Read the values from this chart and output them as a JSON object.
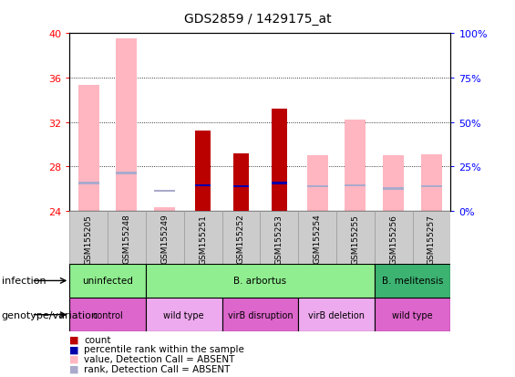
{
  "title": "GDS2859 / 1429175_at",
  "samples": [
    "GSM155205",
    "GSM155248",
    "GSM155249",
    "GSM155251",
    "GSM155252",
    "GSM155253",
    "GSM155254",
    "GSM155255",
    "GSM155256",
    "GSM155257"
  ],
  "ylim_left": [
    24,
    40
  ],
  "ylim_right": [
    0,
    100
  ],
  "yticks_left": [
    24,
    28,
    32,
    36,
    40
  ],
  "yticks_right": [
    0,
    25,
    50,
    75,
    100
  ],
  "pink_bar_top": [
    35.3,
    39.5,
    24.3,
    null,
    null,
    null,
    29.0,
    32.2,
    29.0,
    29.1
  ],
  "blue_rank_pos": [
    26.5,
    27.4,
    25.8,
    null,
    null,
    null,
    26.2,
    26.3,
    26.0,
    26.2
  ],
  "red_bar_top": [
    null,
    null,
    null,
    31.2,
    29.2,
    33.2,
    null,
    null,
    null,
    null
  ],
  "blue_dot_pos": [
    null,
    null,
    null,
    26.3,
    26.2,
    26.5,
    null,
    null,
    null,
    null
  ],
  "ymin": 24.0,
  "infection_groups": [
    {
      "label": "uninfected",
      "start": 0,
      "end": 2,
      "color": "#90EE90"
    },
    {
      "label": "B. arbortus",
      "start": 2,
      "end": 8,
      "color": "#90EE90"
    },
    {
      "label": "B. melitensis",
      "start": 8,
      "end": 10,
      "color": "#3CB371"
    }
  ],
  "genotype_groups": [
    {
      "label": "control",
      "start": 0,
      "end": 2,
      "color": "#DD66CC"
    },
    {
      "label": "wild type",
      "start": 2,
      "end": 4,
      "color": "#EEAAEE"
    },
    {
      "label": "virB disruption",
      "start": 4,
      "end": 6,
      "color": "#DD66CC"
    },
    {
      "label": "virB deletion",
      "start": 6,
      "end": 8,
      "color": "#EEAAEE"
    },
    {
      "label": "wild type",
      "start": 8,
      "end": 10,
      "color": "#DD66CC"
    }
  ],
  "red_bar_color": "#BB0000",
  "pink_bar_color": "#FFB6C1",
  "blue_dot_color": "#0000AA",
  "light_blue_color": "#AAAACC",
  "gray_cell_color": "#CCCCCC",
  "legend_items": [
    {
      "color": "#BB0000",
      "label": "count"
    },
    {
      "color": "#0000AA",
      "label": "percentile rank within the sample"
    },
    {
      "color": "#FFB6C1",
      "label": "value, Detection Call = ABSENT"
    },
    {
      "color": "#AAAACC",
      "label": "rank, Detection Call = ABSENT"
    }
  ]
}
